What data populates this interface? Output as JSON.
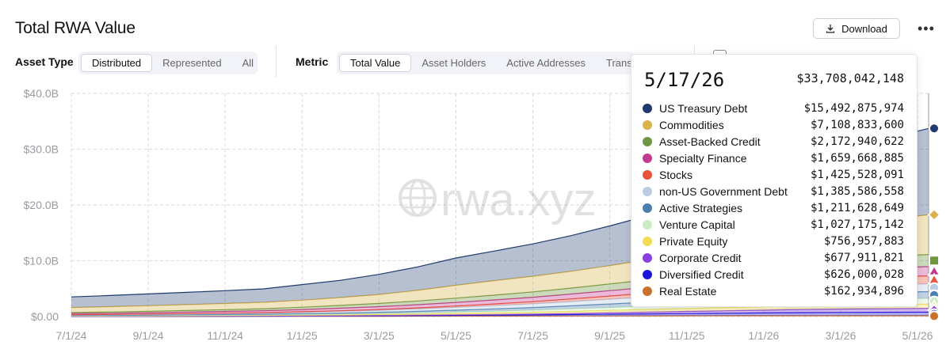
{
  "header": {
    "title": "Total RWA Value",
    "download_label": "Download",
    "more_label": "•••"
  },
  "controls": {
    "asset_type_label": "Asset Type",
    "asset_type_options": [
      "Distributed",
      "Represented",
      "All"
    ],
    "asset_type_selected": "Distributed",
    "metric_label": "Metric",
    "metric_options": [
      "Total Value",
      "Asset Holders",
      "Active Addresses",
      "Transfer"
    ],
    "metric_selected": "Total Value"
  },
  "watermark": "rwa.xyz",
  "chart_data": {
    "type": "area",
    "stacked": true,
    "x": [
      "7/1/24",
      "8/1/24",
      "9/1/24",
      "10/1/24",
      "11/1/24",
      "12/1/24",
      "1/1/25",
      "2/1/25",
      "3/1/25",
      "4/1/25",
      "5/1/25",
      "6/1/25",
      "7/1/25",
      "8/1/25",
      "9/1/25",
      "10/1/25",
      "11/1/25",
      "12/1/25",
      "1/1/26",
      "2/1/26",
      "3/1/26",
      "4/1/26",
      "5/17/26"
    ],
    "x_tick_labels": [
      "7/1/24",
      "9/1/24",
      "11/1/24",
      "1/1/25",
      "3/1/25",
      "5/1/25",
      "7/1/25",
      "9/1/25",
      "11/1/25",
      "1/1/26",
      "3/1/26",
      "5/1/26"
    ],
    "y_tick_labels": [
      "$0.00",
      "$10.0B",
      "$20.0B",
      "$30.0B",
      "$40.0B"
    ],
    "ylim": [
      0,
      40
    ],
    "yunit": "B",
    "grid": true,
    "series": [
      {
        "name": "Real Estate",
        "color": "#c8702e",
        "values": [
          0.02,
          0.02,
          0.02,
          0.03,
          0.03,
          0.04,
          0.05,
          0.05,
          0.06,
          0.07,
          0.08,
          0.09,
          0.1,
          0.11,
          0.12,
          0.13,
          0.14,
          0.15,
          0.15,
          0.16,
          0.16,
          0.16,
          0.16
        ]
      },
      {
        "name": "Diversified Credit",
        "color": "#1a16d9",
        "values": [
          0.01,
          0.01,
          0.01,
          0.02,
          0.02,
          0.03,
          0.03,
          0.05,
          0.07,
          0.1,
          0.13,
          0.16,
          0.2,
          0.25,
          0.3,
          0.35,
          0.4,
          0.45,
          0.5,
          0.55,
          0.58,
          0.6,
          0.63
        ]
      },
      {
        "name": "Corporate Credit",
        "color": "#8a3fe0",
        "values": [
          0.02,
          0.02,
          0.03,
          0.03,
          0.04,
          0.04,
          0.05,
          0.06,
          0.07,
          0.08,
          0.1,
          0.12,
          0.15,
          0.2,
          0.26,
          0.32,
          0.38,
          0.44,
          0.5,
          0.56,
          0.61,
          0.65,
          0.68
        ]
      },
      {
        "name": "Private Equity",
        "color": "#f2dc52",
        "values": [
          0.05,
          0.06,
          0.07,
          0.08,
          0.09,
          0.1,
          0.12,
          0.14,
          0.17,
          0.2,
          0.24,
          0.28,
          0.32,
          0.37,
          0.42,
          0.47,
          0.52,
          0.57,
          0.62,
          0.67,
          0.71,
          0.74,
          0.76
        ]
      },
      {
        "name": "Venture Capital",
        "color": "#c9ecc2",
        "values": [
          0.05,
          0.06,
          0.07,
          0.08,
          0.09,
          0.1,
          0.12,
          0.15,
          0.18,
          0.22,
          0.27,
          0.32,
          0.38,
          0.45,
          0.52,
          0.6,
          0.68,
          0.76,
          0.84,
          0.91,
          0.96,
          1.0,
          1.03
        ]
      },
      {
        "name": "Active Strategies",
        "color": "#4b7fb0",
        "values": [
          0.05,
          0.06,
          0.07,
          0.08,
          0.1,
          0.12,
          0.15,
          0.18,
          0.22,
          0.27,
          0.33,
          0.4,
          0.47,
          0.55,
          0.64,
          0.72,
          0.8,
          0.88,
          0.96,
          1.04,
          1.11,
          1.17,
          1.21
        ]
      },
      {
        "name": "non-US Government Debt",
        "color": "#b9cce3",
        "values": [
          0.1,
          0.12,
          0.14,
          0.16,
          0.18,
          0.2,
          0.25,
          0.3,
          0.35,
          0.42,
          0.5,
          0.58,
          0.66,
          0.75,
          0.84,
          0.93,
          1.02,
          1.1,
          1.18,
          1.25,
          1.31,
          1.36,
          1.39
        ]
      },
      {
        "name": "Stocks",
        "color": "#e8513a",
        "values": [
          0.02,
          0.03,
          0.04,
          0.05,
          0.06,
          0.07,
          0.09,
          0.11,
          0.14,
          0.18,
          0.23,
          0.3,
          0.38,
          0.48,
          0.58,
          0.7,
          0.82,
          0.94,
          1.06,
          1.18,
          1.28,
          1.37,
          1.43
        ]
      },
      {
        "name": "Specialty Finance",
        "color": "#c23a8e",
        "values": [
          0.2,
          0.22,
          0.25,
          0.28,
          0.31,
          0.35,
          0.4,
          0.46,
          0.52,
          0.59,
          0.66,
          0.73,
          0.8,
          0.88,
          0.96,
          1.05,
          1.14,
          1.23,
          1.32,
          1.42,
          1.52,
          1.6,
          1.66
        ]
      },
      {
        "name": "Asset-Backed Credit",
        "color": "#6e9640",
        "values": [
          0.2,
          0.22,
          0.25,
          0.28,
          0.32,
          0.36,
          0.42,
          0.5,
          0.58,
          0.67,
          0.76,
          0.86,
          0.96,
          1.07,
          1.2,
          1.34,
          1.48,
          1.62,
          1.76,
          1.9,
          2.02,
          2.12,
          2.17
        ]
      },
      {
        "name": "Commodities",
        "color": "#d8b24a",
        "values": [
          0.9,
          0.95,
          1.0,
          1.05,
          1.1,
          1.15,
          1.25,
          1.4,
          1.6,
          1.9,
          2.3,
          2.6,
          2.8,
          3.0,
          3.3,
          3.6,
          4.0,
          4.4,
          4.9,
          5.4,
          6.0,
          6.6,
          7.11
        ]
      },
      {
        "name": "US Treasury Debt",
        "color": "#1f3a6e",
        "values": [
          1.9,
          2.0,
          2.1,
          2.2,
          2.3,
          2.4,
          2.8,
          3.1,
          3.6,
          4.2,
          4.9,
          5.3,
          5.8,
          6.4,
          7.1,
          7.9,
          8.6,
          9.4,
          10.4,
          11.6,
          12.8,
          14.2,
          15.49
        ]
      }
    ]
  },
  "tooltip": {
    "date": "5/17/26",
    "total": "$33,708,042,148",
    "rows": [
      {
        "name": "US Treasury Debt",
        "value": "$15,492,875,974",
        "color": "#1f3a6e"
      },
      {
        "name": "Commodities",
        "value": "$7,108,833,600",
        "color": "#d8b24a"
      },
      {
        "name": "Asset-Backed Credit",
        "value": "$2,172,940,622",
        "color": "#6e9640"
      },
      {
        "name": "Specialty Finance",
        "value": "$1,659,668,885",
        "color": "#c23a8e"
      },
      {
        "name": "Stocks",
        "value": "$1,425,528,091",
        "color": "#e8513a"
      },
      {
        "name": "non-US Government Debt",
        "value": "$1,385,586,558",
        "color": "#b9cce3"
      },
      {
        "name": "Active Strategies",
        "value": "$1,211,628,649",
        "color": "#4b7fb0"
      },
      {
        "name": "Venture Capital",
        "value": "$1,027,175,142",
        "color": "#c9ecc2"
      },
      {
        "name": "Private Equity",
        "value": "$756,957,883",
        "color": "#f2dc52"
      },
      {
        "name": "Corporate Credit",
        "value": "$677,911,821",
        "color": "#8a3fe0"
      },
      {
        "name": "Diversified Credit",
        "value": "$626,000,028",
        "color": "#1a16d9"
      },
      {
        "name": "Real Estate",
        "value": "$162,934,896",
        "color": "#c8702e"
      }
    ]
  }
}
